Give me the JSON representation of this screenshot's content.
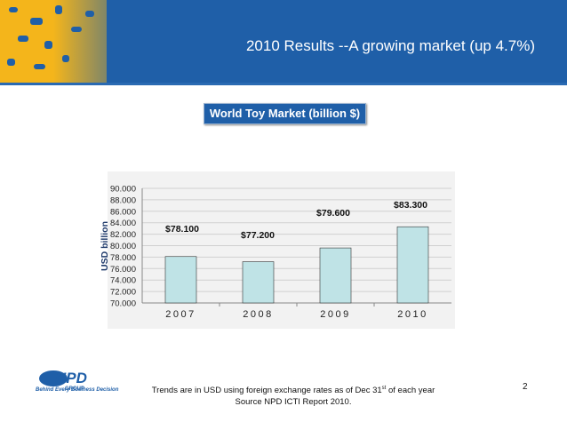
{
  "slide": {
    "title": "2010 Results --A growing market (up 4.7%)",
    "subtitle": "World Toy Market (billion $)",
    "footnote_line1_pre": "Trends are in USD using foreign exchange rates as of Dec 31",
    "footnote_line1_sup": "st",
    "footnote_line1_post": " of each year",
    "footnote_line2": "Source NPD ICTI Report 2010.",
    "page_number": "2",
    "logo_text": "NPD",
    "logo_group": "GROUP",
    "logo_tagline": "Behind Every Business Decision"
  },
  "colors": {
    "header_blue": "#1f5fa8",
    "header_yellow": "#f4b51b",
    "bar_fill": "#bfe3e6",
    "bar_stroke": "#333333"
  },
  "chart_data": {
    "type": "bar",
    "categories": [
      "2007",
      "2008",
      "2009",
      "2010"
    ],
    "values": [
      78.1,
      77.2,
      79.6,
      83.3
    ],
    "data_labels": [
      "$78.100",
      "$77.200",
      "$79.600",
      "$83.300"
    ],
    "ylabel": "USD billion",
    "ylim": [
      70,
      90
    ],
    "yticks": [
      "70.000",
      "72.000",
      "74.000",
      "76.000",
      "78.000",
      "80.000",
      "82.000",
      "84.000",
      "86.000",
      "88.000",
      "90.000"
    ],
    "grid": true
  }
}
